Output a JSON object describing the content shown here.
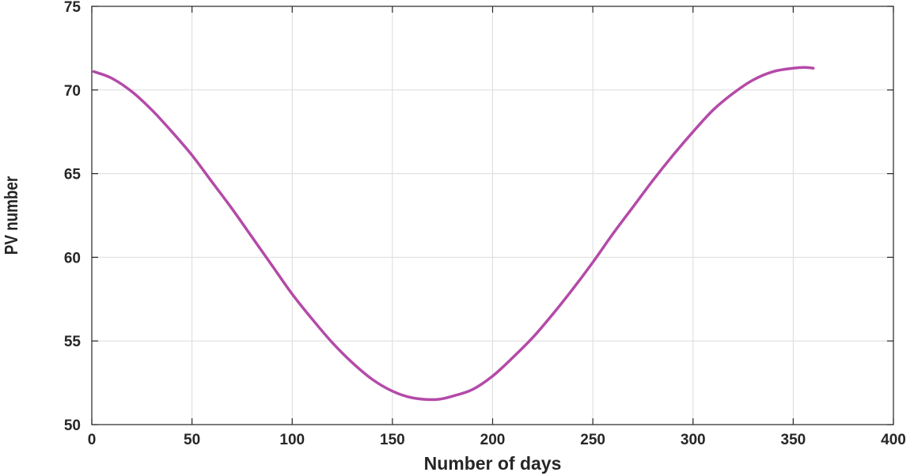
{
  "chart_data": {
    "type": "line",
    "title": "",
    "xlabel": "Number of days",
    "ylabel": "PV number",
    "xlim": [
      0,
      400
    ],
    "ylim": [
      50,
      75
    ],
    "xticks": [
      0,
      50,
      100,
      150,
      200,
      250,
      300,
      350,
      400
    ],
    "yticks": [
      50,
      55,
      60,
      65,
      70,
      75
    ],
    "grid": true,
    "series": [
      {
        "color": "#b44aa8",
        "x": [
          1,
          10,
          20,
          30,
          40,
          50,
          60,
          70,
          80,
          90,
          100,
          110,
          120,
          130,
          140,
          150,
          160,
          172,
          180,
          190,
          200,
          210,
          220,
          230,
          240,
          250,
          260,
          270,
          280,
          290,
          300,
          310,
          320,
          330,
          340,
          350,
          356,
          360
        ],
        "y": [
          71.1,
          70.7,
          69.9,
          68.8,
          67.5,
          66.1,
          64.5,
          62.9,
          61.2,
          59.5,
          57.8,
          56.3,
          54.9,
          53.7,
          52.7,
          52.0,
          51.6,
          51.5,
          51.7,
          52.1,
          52.9,
          54.0,
          55.2,
          56.6,
          58.1,
          59.7,
          61.4,
          63.0,
          64.6,
          66.1,
          67.5,
          68.8,
          69.8,
          70.6,
          71.1,
          71.3,
          71.35,
          71.3
        ]
      }
    ]
  }
}
